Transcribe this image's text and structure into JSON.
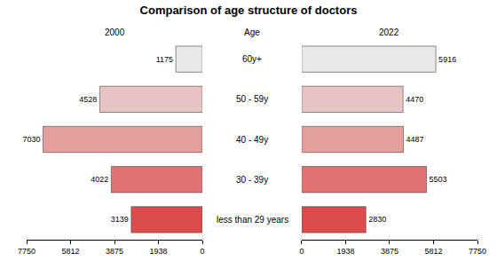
{
  "chart_data": {
    "type": "bar",
    "orientation": "horizontal",
    "title": "Comparison of age structure of doctors",
    "ylabel": "Age",
    "categories": [
      "60y+",
      "50 - 59y",
      "40 - 49y",
      "30 - 39y",
      "less than 29 years"
    ],
    "colors": [
      "#e8e8e8",
      "#e8c4c4",
      "#e59e9e",
      "#e07272",
      "#dc4c4c"
    ],
    "series": [
      {
        "name": "2000",
        "values": [
          1175,
          4528,
          7030,
          4022,
          3139
        ]
      },
      {
        "name": "2022",
        "values": [
          5916,
          4470,
          4487,
          5503,
          2830
        ]
      }
    ],
    "xlim": [
      0,
      7750
    ],
    "xticks": [
      0,
      1938,
      3875,
      5812,
      7750
    ],
    "data_labels": true,
    "grid": false
  }
}
